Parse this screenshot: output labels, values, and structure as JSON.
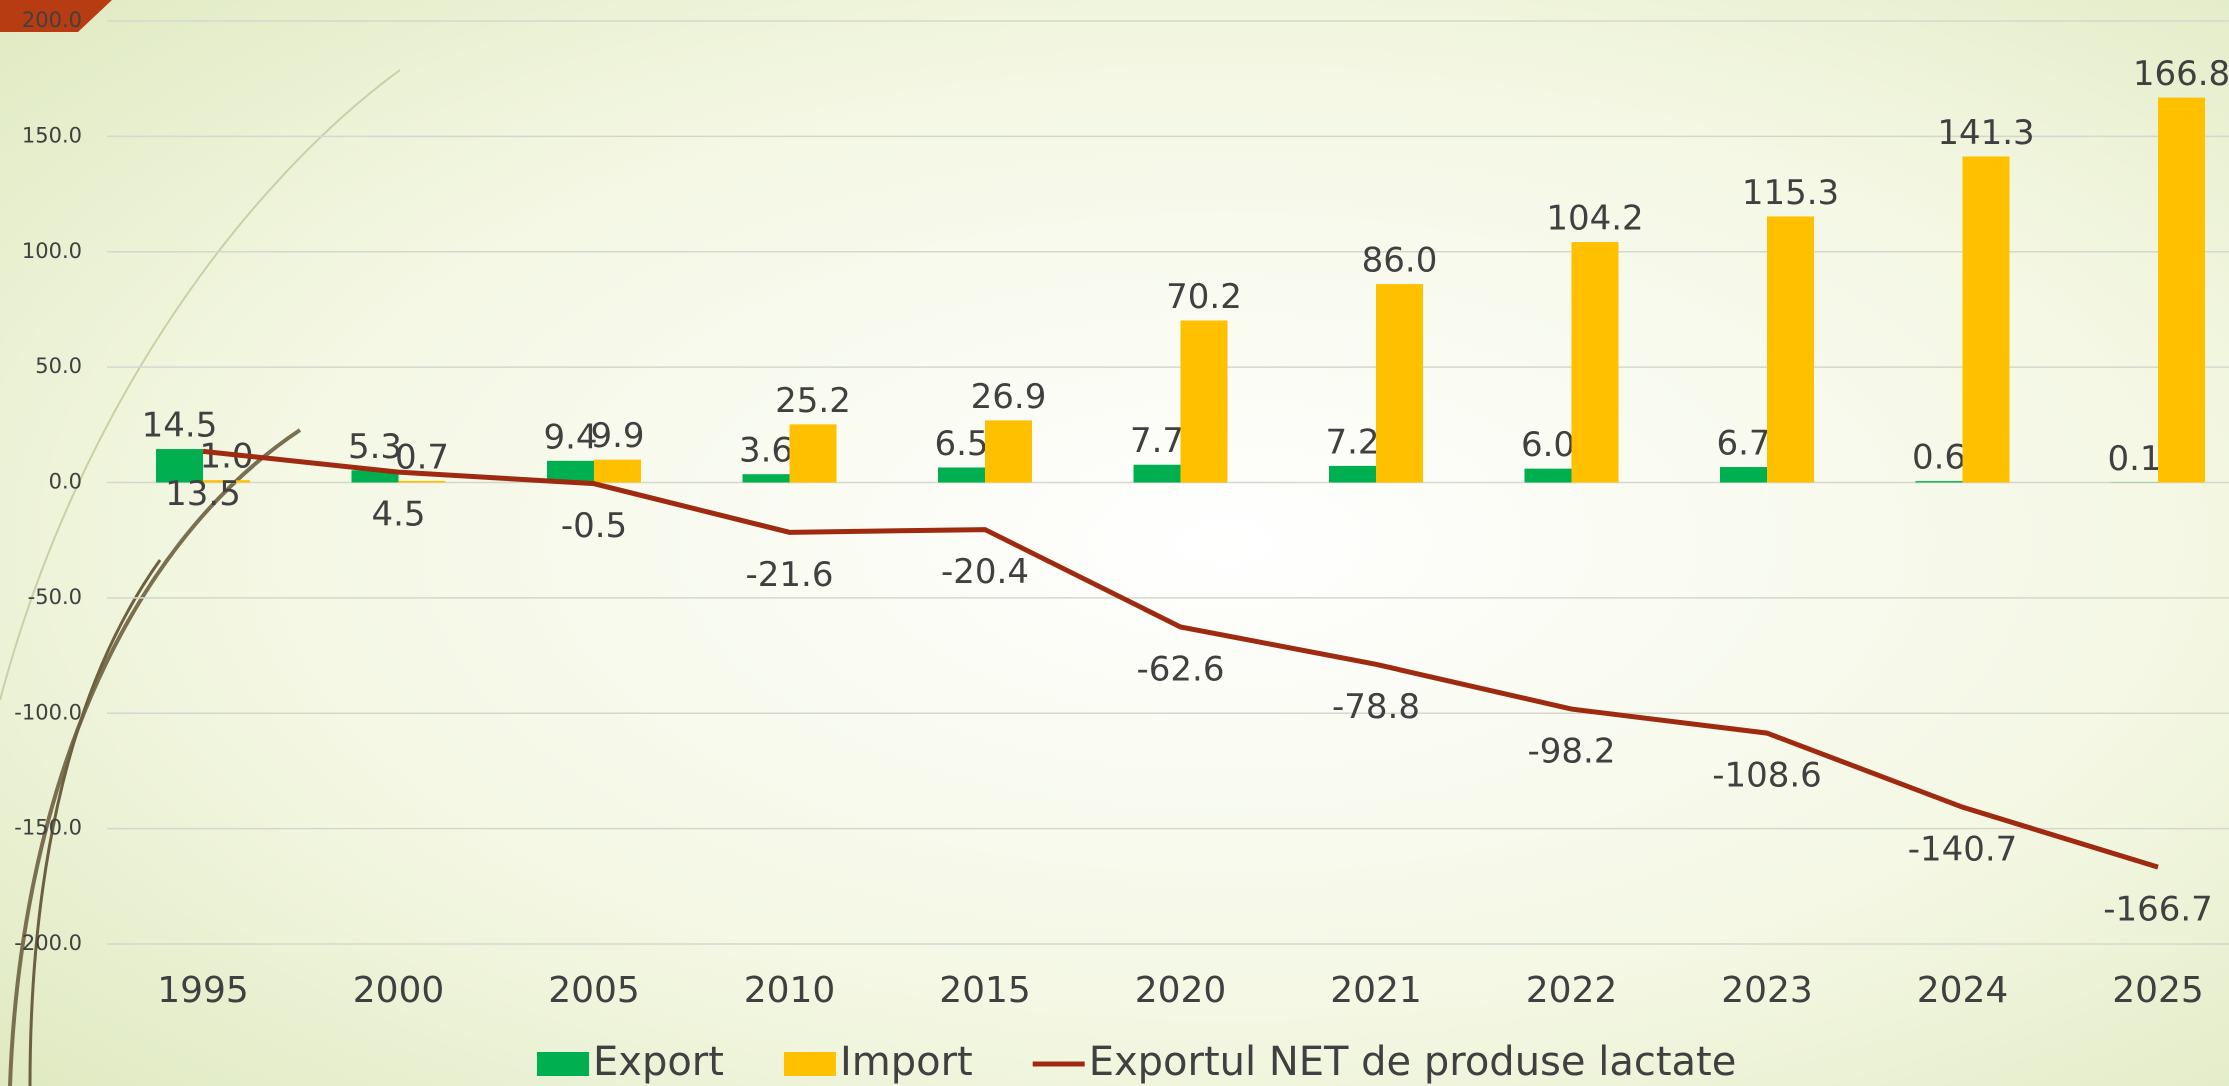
{
  "chart_data": {
    "type": "bar-line",
    "categories": [
      "1995",
      "2000",
      "2005",
      "2010",
      "2015",
      "2020",
      "2021",
      "2022",
      "2023",
      "2024",
      "2025"
    ],
    "series": [
      {
        "name": "Export",
        "type": "bar",
        "color": "#00b050",
        "values": [
          14.5,
          5.3,
          9.4,
          3.6,
          6.5,
          7.7,
          7.2,
          6.0,
          6.7,
          0.6,
          0.1
        ],
        "value_labels": [
          "14.5",
          "5.3",
          "9.4",
          "3.6",
          "6.5",
          "7.7",
          "7.2",
          "6.0",
          "6.7",
          "0.6",
          "0.1"
        ]
      },
      {
        "name": "Import",
        "type": "bar",
        "color": "#ffc000",
        "values": [
          1.0,
          0.7,
          9.9,
          25.2,
          26.9,
          70.2,
          86.0,
          104.2,
          115.3,
          141.3,
          166.8
        ],
        "value_labels": [
          "1.0",
          "0.7",
          "9.9",
          "25.2",
          "26.9",
          "70.2",
          "86.0",
          "104.2",
          "115.3",
          "141.3",
          "166.8"
        ]
      },
      {
        "name": "Exportul NET de produse lactate",
        "type": "line",
        "color": "#9e2a10",
        "values": [
          13.5,
          4.5,
          -0.5,
          -21.6,
          -20.4,
          -62.6,
          -78.8,
          -98.2,
          -108.6,
          -140.7,
          -166.7
        ],
        "value_labels": [
          "13.5",
          "4.5",
          "-0.5",
          "-21.6",
          "-20.4",
          "-62.6",
          "-78.8",
          "-98.2",
          "-108.6",
          "-140.7",
          "-166.7"
        ]
      }
    ],
    "ylim": [
      -200,
      200
    ],
    "yticks": [
      {
        "value": -200,
        "label": "-200.0"
      },
      {
        "value": -150,
        "label": "-150.0"
      },
      {
        "value": -100,
        "label": "-100.0"
      },
      {
        "value": -50,
        "label": "-50.0"
      },
      {
        "value": 0,
        "label": "0.0"
      },
      {
        "value": 50,
        "label": "50.0"
      },
      {
        "value": 100,
        "label": "100.0"
      },
      {
        "value": 150,
        "label": "150.0"
      },
      {
        "value": 200,
        "label": "200.0"
      }
    ],
    "grid": true,
    "legend": "bottom"
  }
}
